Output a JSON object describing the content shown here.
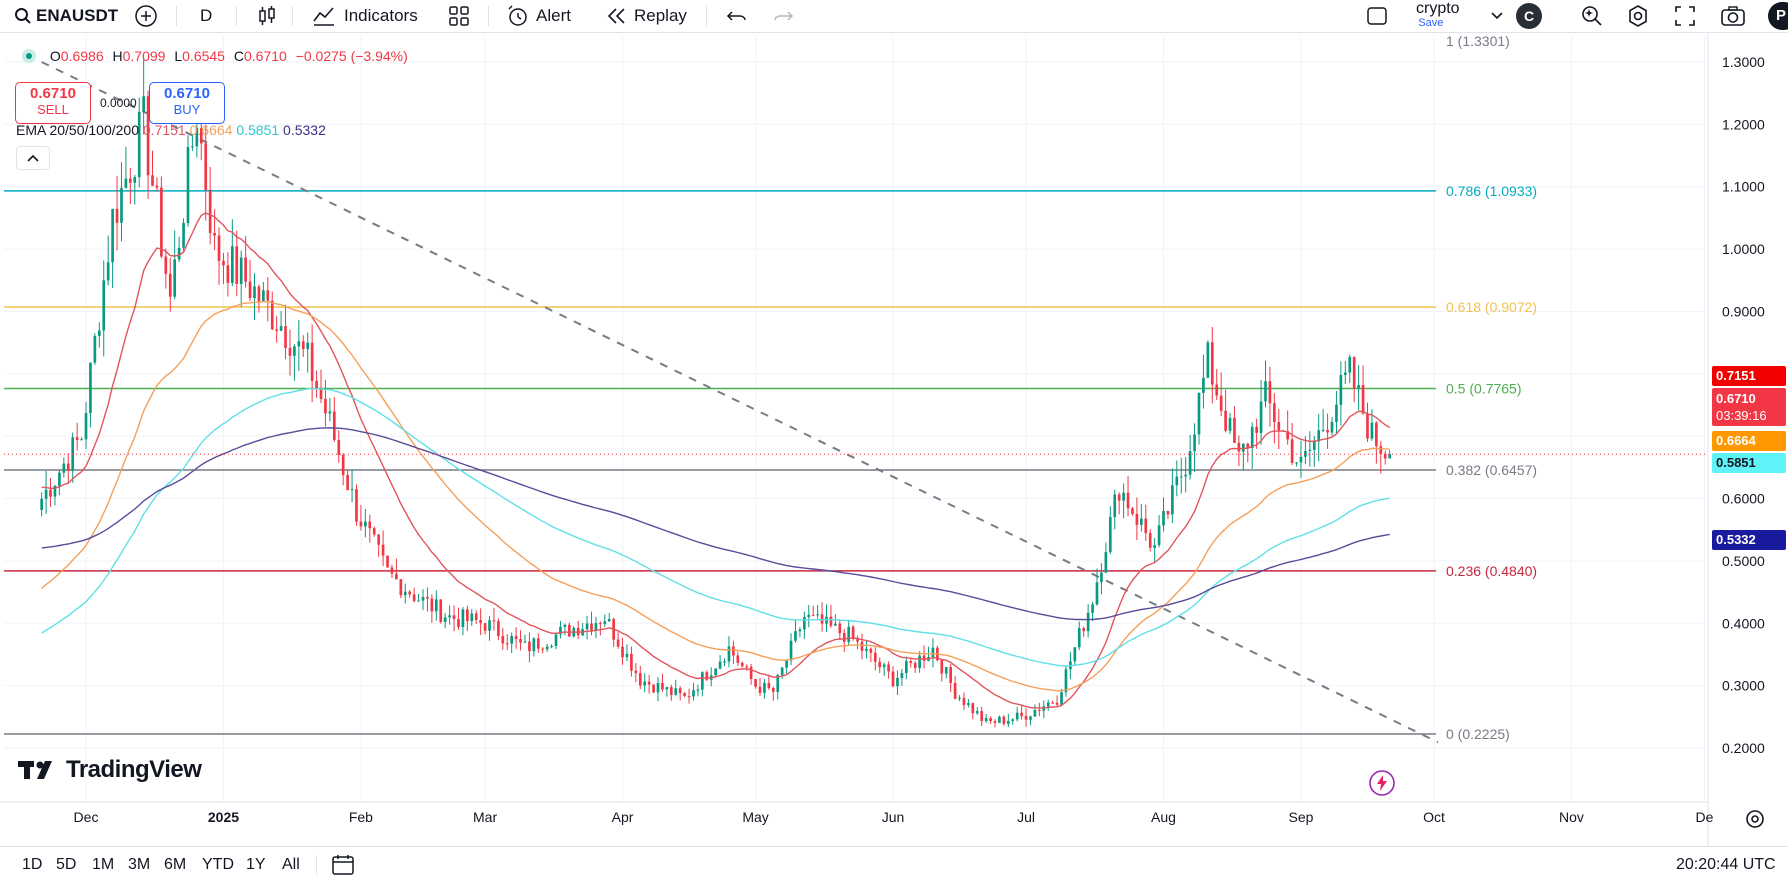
{
  "toolbar": {
    "symbol": "ENAUSDT",
    "interval": "D",
    "indicators_label": "Indicators",
    "alert_label": "Alert",
    "replay_label": "Replay",
    "layout_name": "crypto",
    "layout_save": "Save",
    "avatar_letter": "C",
    "profile_letter": "P"
  },
  "legend": {
    "open_label": "O",
    "open": "0.6986",
    "high_label": "H",
    "high": "0.7099",
    "low_label": "L",
    "low": "0.6545",
    "close_label": "C",
    "close": "0.6710",
    "change": "−0.0275 (−3.94%)",
    "sell_price": "0.6710",
    "sell_label": "SELL",
    "spread": "0.0000",
    "buy_price": "0.6710",
    "buy_label": "BUY",
    "ema_label": "EMA 20/50/100/200",
    "ema20": "0.7151",
    "ema50": "0.6664",
    "ema100": "0.5851",
    "ema200": "0.5332",
    "collapse_icon": "chevron-up-icon"
  },
  "price_tags": {
    "ema20": "0.7151",
    "current": "0.6710",
    "countdown": "03:39:16",
    "ema50": "0.6664",
    "ema100": "0.5851",
    "ema200": "0.5332"
  },
  "colors": {
    "up": "#089981",
    "down": "#f23645",
    "ema20": "#e0555e",
    "ema50": "#f5a05a",
    "ema100": "#5fe0e6",
    "ema200": "#5b4b9a",
    "fib_786": "#00acc1",
    "fib_618": "#f2c24b",
    "fib_05": "#4caf50",
    "fib_382": "#787b86",
    "fib_236": "#c62840",
    "fib_0": "#787b86"
  },
  "brand": "TradingView",
  "bottom": {
    "ranges": [
      "1D",
      "5D",
      "1M",
      "3M",
      "6M",
      "YTD",
      "1Y",
      "All"
    ],
    "time": "20:20:44 UTC"
  },
  "chart_data": {
    "type": "candlestick",
    "symbol": "ENAUSDT",
    "interval": "D",
    "y_axis": {
      "range": [
        0.18,
        1.32
      ],
      "ticks": [
        "1.3000",
        "1.2000",
        "1.1000",
        "1.0000",
        "0.9000",
        "0.8000",
        "0.7000",
        "0.6000",
        "0.5000",
        "0.4000",
        "0.3000",
        "0.2000"
      ]
    },
    "x_axis": {
      "ticks": [
        "Dec",
        "2025",
        "Feb",
        "Mar",
        "Apr",
        "May",
        "Jun",
        "Jul",
        "Aug",
        "Sep",
        "Oct",
        "Nov",
        "De"
      ]
    },
    "fib_levels": [
      {
        "label": "1 (1.3301)",
        "price": 1.3301
      },
      {
        "label": "0.786 (1.0933)",
        "price": 1.0933
      },
      {
        "label": "0.618 (0.9072)",
        "price": 0.9072
      },
      {
        "label": "0.5 (0.7765)",
        "price": 0.7765
      },
      {
        "label": "0.382 (0.6457)",
        "price": 0.6457
      },
      {
        "label": "0.236 (0.4840)",
        "price": 0.484
      },
      {
        "label": "0 (0.2225)",
        "price": 0.2225
      }
    ],
    "trendline": {
      "from": {
        "date": "2024-11-21",
        "price": 1.3
      },
      "to": {
        "date": "2025-10-01",
        "price": 0.23
      }
    },
    "price_path": [
      {
        "date": "2024-11-21",
        "price": 0.6
      },
      {
        "date": "2024-11-30",
        "price": 0.7
      },
      {
        "date": "2024-12-07",
        "price": 1.05
      },
      {
        "date": "2024-12-14",
        "price": 1.2
      },
      {
        "date": "2024-12-20",
        "price": 0.92
      },
      {
        "date": "2024-12-26",
        "price": 1.22
      },
      {
        "date": "2024-12-30",
        "price": 1.0
      },
      {
        "date": "2025-01-06",
        "price": 0.95
      },
      {
        "date": "2025-01-14",
        "price": 0.88
      },
      {
        "date": "2025-01-20",
        "price": 0.82
      },
      {
        "date": "2025-01-25",
        "price": 0.72
      },
      {
        "date": "2025-01-31",
        "price": 0.58
      },
      {
        "date": "2025-02-07",
        "price": 0.48
      },
      {
        "date": "2025-02-14",
        "price": 0.44
      },
      {
        "date": "2025-02-21",
        "price": 0.41
      },
      {
        "date": "2025-03-01",
        "price": 0.4
      },
      {
        "date": "2025-03-10",
        "price": 0.36
      },
      {
        "date": "2025-03-20",
        "price": 0.39
      },
      {
        "date": "2025-03-28",
        "price": 0.41
      },
      {
        "date": "2025-04-05",
        "price": 0.31
      },
      {
        "date": "2025-04-15",
        "price": 0.28
      },
      {
        "date": "2025-04-25",
        "price": 0.36
      },
      {
        "date": "2025-05-01",
        "price": 0.3
      },
      {
        "date": "2025-05-05",
        "price": 0.29
      },
      {
        "date": "2025-05-12",
        "price": 0.41
      },
      {
        "date": "2025-05-22",
        "price": 0.38
      },
      {
        "date": "2025-06-01",
        "price": 0.31
      },
      {
        "date": "2025-06-10",
        "price": 0.36
      },
      {
        "date": "2025-06-15",
        "price": 0.29
      },
      {
        "date": "2025-06-22",
        "price": 0.24
      },
      {
        "date": "2025-06-30",
        "price": 0.25
      },
      {
        "date": "2025-07-08",
        "price": 0.28
      },
      {
        "date": "2025-07-16",
        "price": 0.44
      },
      {
        "date": "2025-07-22",
        "price": 0.62
      },
      {
        "date": "2025-07-30",
        "price": 0.52
      },
      {
        "date": "2025-08-06",
        "price": 0.66
      },
      {
        "date": "2025-08-11",
        "price": 0.82
      },
      {
        "date": "2025-08-18",
        "price": 0.66
      },
      {
        "date": "2025-08-24",
        "price": 0.76
      },
      {
        "date": "2025-09-01",
        "price": 0.65
      },
      {
        "date": "2025-09-07",
        "price": 0.73
      },
      {
        "date": "2025-09-12",
        "price": 0.8
      },
      {
        "date": "2025-09-17",
        "price": 0.7
      },
      {
        "date": "2025-09-21",
        "price": 0.671
      }
    ],
    "ema_series": [
      {
        "name": "EMA 20",
        "last": 0.7151
      },
      {
        "name": "EMA 50",
        "last": 0.6664
      },
      {
        "name": "EMA 100",
        "last": 0.5851
      },
      {
        "name": "EMA 200",
        "last": 0.5332
      }
    ]
  }
}
